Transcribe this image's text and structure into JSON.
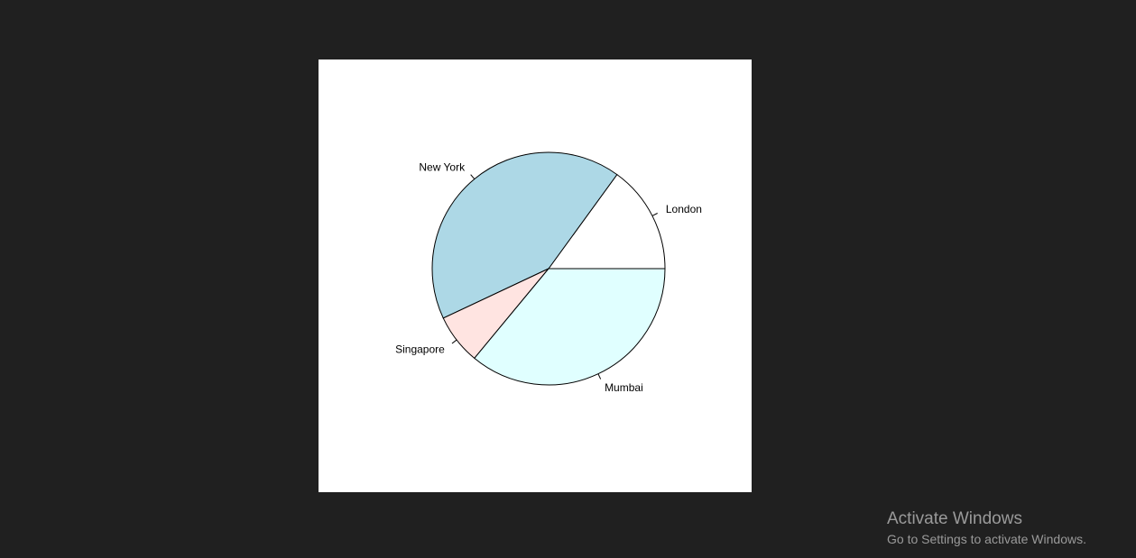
{
  "chart_data": {
    "type": "pie",
    "categories": [
      "London",
      "New York",
      "Singapore",
      "Mumbai"
    ],
    "values": [
      15,
      42,
      7,
      36
    ],
    "colors": [
      "#ffffff",
      "#add8e6",
      "#ffe4e1",
      "#e0ffff"
    ],
    "start_angle_deg": 0,
    "direction": "counterclockwise",
    "border_color": "#000000"
  },
  "watermark": {
    "title": "Activate Windows",
    "subtitle": "Go to Settings to activate Windows."
  }
}
